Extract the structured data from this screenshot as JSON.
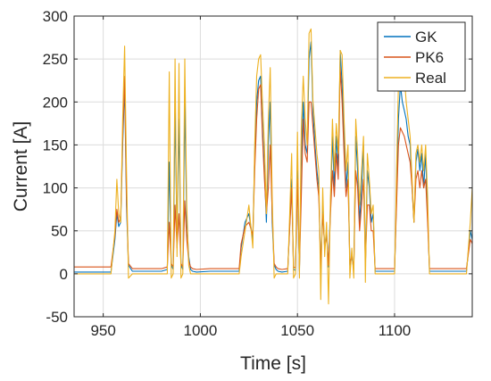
{
  "chart_data": {
    "type": "line",
    "title": "",
    "xlabel": "Time [s]",
    "ylabel": "Current [A]",
    "xlim": [
      935,
      1140
    ],
    "ylim": [
      -50,
      300
    ],
    "xticks": [
      950,
      1000,
      1050,
      1100
    ],
    "yticks": [
      -50,
      0,
      50,
      100,
      150,
      200,
      250,
      300
    ],
    "grid": true,
    "legend_position": "top-right",
    "series": [
      {
        "name": "GK",
        "color": "#0072BD",
        "x": [
          935,
          954,
          956,
          957,
          958,
          959,
          960,
          961,
          962,
          963,
          965,
          980,
          983,
          984,
          985,
          986,
          987,
          988,
          989,
          990,
          991,
          992,
          993,
          994,
          995,
          996,
          998,
          1005,
          1015,
          1020,
          1021,
          1023,
          1025,
          1027,
          1028,
          1029,
          1030,
          1031,
          1032,
          1033,
          1034,
          1035,
          1036,
          1037,
          1038,
          1039,
          1040,
          1042,
          1045,
          1047,
          1048,
          1049,
          1050,
          1051,
          1052,
          1053,
          1054,
          1055,
          1056,
          1057,
          1058,
          1059,
          1060,
          1061,
          1062,
          1063,
          1064,
          1065,
          1066,
          1067,
          1068,
          1069,
          1070,
          1071,
          1072,
          1073,
          1074,
          1075,
          1076,
          1077,
          1078,
          1079,
          1080,
          1081,
          1082,
          1083,
          1084,
          1085,
          1086,
          1087,
          1088,
          1089,
          1090,
          1092,
          1095,
          1098,
          1100,
          1101,
          1102,
          1103,
          1104,
          1105,
          1106,
          1107,
          1108,
          1109,
          1110,
          1111,
          1112,
          1113,
          1114,
          1115,
          1116,
          1117,
          1118,
          1120,
          1125,
          1130,
          1135,
          1137,
          1139,
          1140
        ],
        "y": [
          2,
          2,
          40,
          70,
          55,
          60,
          150,
          220,
          80,
          10,
          3,
          3,
          5,
          130,
          10,
          5,
          190,
          40,
          180,
          10,
          5,
          200,
          60,
          20,
          5,
          3,
          2,
          3,
          3,
          3,
          30,
          60,
          70,
          40,
          140,
          200,
          225,
          230,
          170,
          120,
          60,
          150,
          200,
          60,
          10,
          5,
          3,
          2,
          3,
          110,
          5,
          4,
          120,
          3,
          130,
          200,
          150,
          140,
          250,
          270,
          190,
          150,
          120,
          100,
          5,
          80,
          30,
          50,
          8,
          80,
          160,
          100,
          160,
          120,
          260,
          220,
          160,
          100,
          130,
          10,
          20,
          5,
          160,
          120,
          60,
          100,
          150,
          10,
          120,
          100,
          60,
          70,
          3,
          3,
          3,
          3,
          3,
          90,
          180,
          220,
          200,
          190,
          180,
          160,
          150,
          100,
          60,
          130,
          145,
          120,
          140,
          100,
          140,
          70,
          3,
          3,
          3,
          3,
          3,
          3,
          50,
          40
        ],
        "color_hex": "#0072BD"
      },
      {
        "name": "PK6",
        "color": "#D95319",
        "x": [
          935,
          954,
          956,
          957,
          958,
          959,
          960,
          961,
          962,
          963,
          965,
          980,
          983,
          984,
          985,
          986,
          987,
          988,
          989,
          990,
          991,
          992,
          993,
          994,
          995,
          996,
          998,
          1005,
          1015,
          1020,
          1021,
          1023,
          1025,
          1027,
          1028,
          1029,
          1030,
          1031,
          1032,
          1033,
          1034,
          1035,
          1036,
          1037,
          1038,
          1039,
          1040,
          1042,
          1045,
          1047,
          1048,
          1049,
          1050,
          1051,
          1052,
          1053,
          1054,
          1055,
          1056,
          1057,
          1058,
          1059,
          1060,
          1061,
          1062,
          1063,
          1064,
          1065,
          1066,
          1067,
          1068,
          1069,
          1070,
          1071,
          1072,
          1073,
          1074,
          1075,
          1076,
          1077,
          1078,
          1079,
          1080,
          1081,
          1082,
          1083,
          1084,
          1085,
          1086,
          1087,
          1088,
          1089,
          1090,
          1092,
          1095,
          1098,
          1100,
          1101,
          1102,
          1103,
          1104,
          1105,
          1106,
          1107,
          1108,
          1109,
          1110,
          1111,
          1112,
          1113,
          1114,
          1115,
          1116,
          1117,
          1118,
          1120,
          1125,
          1130,
          1135,
          1137,
          1139,
          1140
        ],
        "y": [
          8,
          8,
          45,
          75,
          60,
          65,
          160,
          230,
          90,
          12,
          6,
          6,
          8,
          60,
          12,
          8,
          80,
          30,
          70,
          12,
          8,
          85,
          40,
          15,
          8,
          6,
          5,
          6,
          6,
          6,
          35,
          55,
          60,
          45,
          120,
          180,
          215,
          220,
          160,
          110,
          70,
          100,
          150,
          70,
          12,
          8,
          6,
          5,
          6,
          100,
          8,
          7,
          110,
          6,
          90,
          180,
          140,
          130,
          200,
          200,
          170,
          140,
          110,
          90,
          8,
          70,
          30,
          45,
          10,
          70,
          120,
          90,
          140,
          110,
          240,
          200,
          140,
          90,
          110,
          12,
          20,
          8,
          120,
          100,
          50,
          80,
          110,
          12,
          80,
          80,
          50,
          50,
          6,
          6,
          6,
          6,
          6,
          80,
          150,
          170,
          165,
          160,
          150,
          140,
          130,
          100,
          60,
          110,
          120,
          100,
          120,
          100,
          110,
          60,
          6,
          6,
          6,
          6,
          6,
          6,
          40,
          35
        ]
      },
      {
        "name": "Real",
        "color": "#EDB120",
        "x": [
          935,
          954,
          956,
          957,
          958,
          959,
          960,
          961,
          962,
          963,
          965,
          980,
          983,
          984,
          985,
          986,
          987,
          988,
          989,
          990,
          991,
          992,
          993,
          994,
          995,
          996,
          998,
          1005,
          1015,
          1020,
          1021,
          1023,
          1025,
          1027,
          1028,
          1029,
          1030,
          1031,
          1032,
          1033,
          1034,
          1035,
          1036,
          1037,
          1038,
          1039,
          1040,
          1042,
          1045,
          1047,
          1048,
          1049,
          1050,
          1051,
          1052,
          1053,
          1054,
          1055,
          1056,
          1057,
          1058,
          1059,
          1060,
          1061,
          1062,
          1063,
          1064,
          1065,
          1066,
          1067,
          1068,
          1069,
          1070,
          1071,
          1072,
          1073,
          1074,
          1075,
          1076,
          1077,
          1078,
          1079,
          1080,
          1081,
          1082,
          1083,
          1084,
          1085,
          1086,
          1087,
          1088,
          1089,
          1090,
          1092,
          1095,
          1098,
          1100,
          1101,
          1102,
          1103,
          1104,
          1105,
          1106,
          1107,
          1108,
          1109,
          1110,
          1111,
          1112,
          1113,
          1114,
          1115,
          1116,
          1117,
          1118,
          1120,
          1125,
          1130,
          1135,
          1137,
          1139,
          1140
        ],
        "y": [
          0,
          0,
          50,
          110,
          70,
          60,
          180,
          265,
          120,
          -5,
          0,
          0,
          0,
          235,
          -5,
          0,
          250,
          20,
          245,
          -5,
          0,
          250,
          80,
          10,
          0,
          0,
          0,
          0,
          0,
          0,
          20,
          50,
          80,
          30,
          150,
          230,
          250,
          255,
          200,
          150,
          70,
          180,
          240,
          90,
          -5,
          0,
          0,
          0,
          0,
          140,
          -5,
          0,
          165,
          -5,
          170,
          230,
          180,
          150,
          280,
          285,
          200,
          170,
          140,
          120,
          -30,
          100,
          20,
          60,
          -35,
          90,
          180,
          120,
          175,
          140,
          260,
          255,
          180,
          120,
          150,
          -5,
          30,
          -5,
          180,
          140,
          80,
          120,
          160,
          -10,
          140,
          110,
          70,
          80,
          0,
          0,
          0,
          0,
          0,
          120,
          220,
          255,
          250,
          230,
          200,
          180,
          160,
          110,
          60,
          140,
          150,
          130,
          150,
          120,
          150,
          90,
          0,
          0,
          0,
          0,
          0,
          0,
          60,
          100
        ]
      }
    ]
  }
}
